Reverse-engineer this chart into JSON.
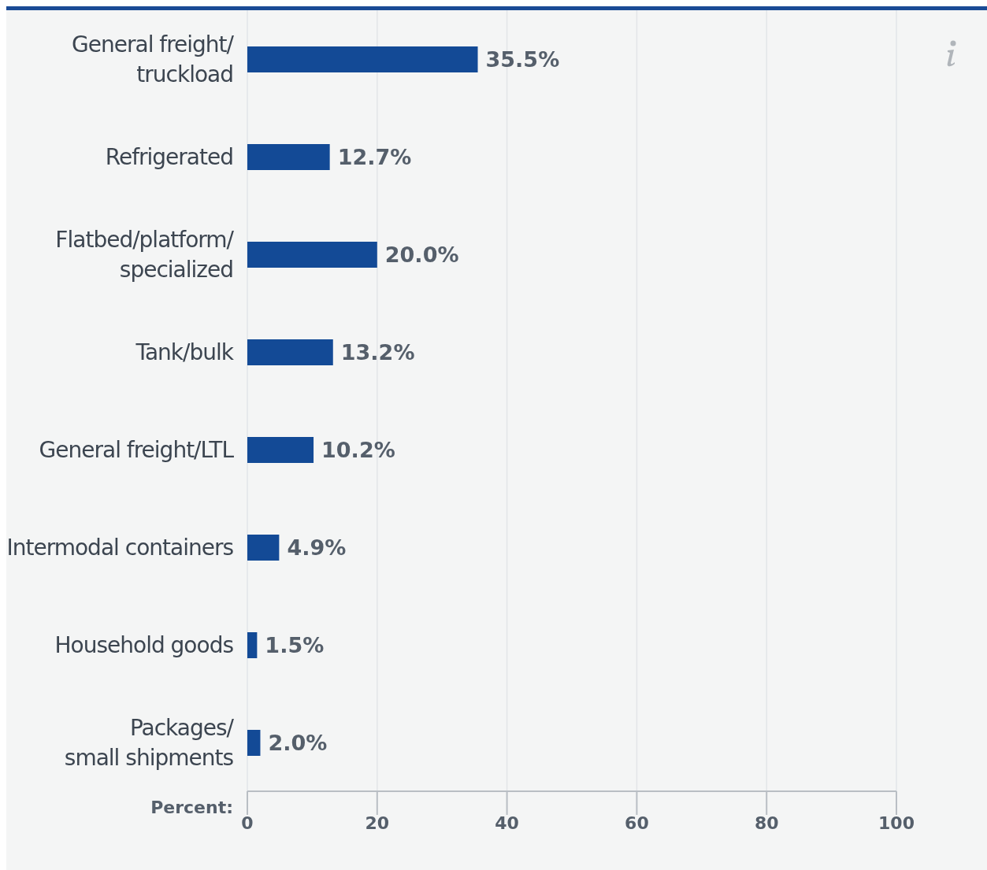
{
  "chart_data": {
    "type": "bar",
    "orientation": "horizontal",
    "categories": [
      "General freight/\ntruckload",
      "Refrigerated",
      "Flatbed/platform/\nspecialized",
      "Tank/bulk",
      "General freight/LTL",
      "Intermodal containers",
      "Household goods",
      "Packages/\nsmall shipments"
    ],
    "values": [
      35.5,
      12.7,
      20.0,
      13.2,
      10.2,
      4.9,
      1.5,
      2.0
    ],
    "value_labels": [
      "35.5%",
      "12.7%",
      "20.0%",
      "13.2%",
      "10.2%",
      "4.9%",
      "1.5%",
      "2.0%"
    ],
    "color": "#134a96",
    "xlabel": "Percent:",
    "xlim": [
      0,
      100
    ],
    "xticks": [
      0,
      20,
      40,
      60,
      80,
      100
    ],
    "grid": "x"
  }
}
